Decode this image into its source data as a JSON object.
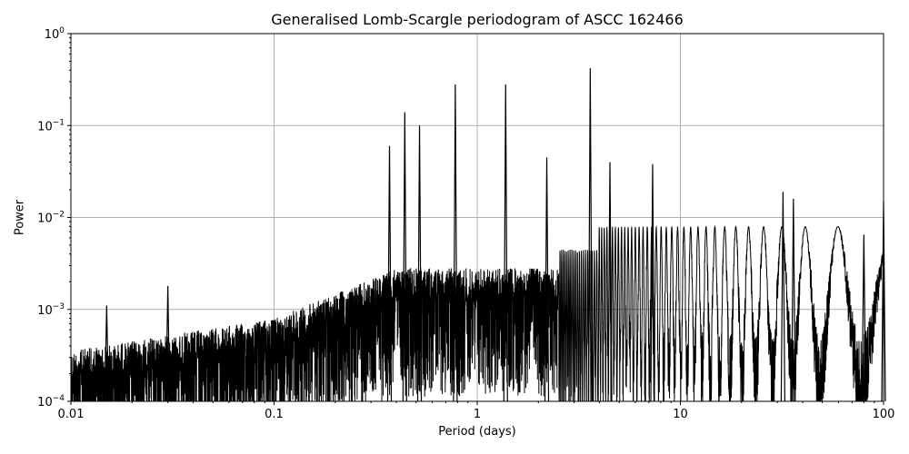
{
  "chart_data": {
    "type": "line",
    "title": "Generalised Lomb-Scargle periodogram of ASCC 162466",
    "xlabel": "Period (days)",
    "ylabel": "Power",
    "xscale": "log",
    "yscale": "log",
    "xlim": [
      0.01,
      100
    ],
    "ylim": [
      0.0001,
      1
    ],
    "grid": true,
    "x_ticks": [
      {
        "value": 0.01,
        "label": "0.01"
      },
      {
        "value": 0.1,
        "label": "0.1"
      },
      {
        "value": 1,
        "label": "1"
      },
      {
        "value": 10,
        "label": "10"
      },
      {
        "value": 100,
        "label": "100"
      }
    ],
    "y_ticks": [
      {
        "value": 1,
        "base": "10",
        "exp": "0"
      },
      {
        "value": 0.1,
        "base": "10",
        "exp": "−1"
      },
      {
        "value": 0.01,
        "base": "10",
        "exp": "−2"
      },
      {
        "value": 0.001,
        "base": "10",
        "exp": "−3"
      },
      {
        "value": 0.0001,
        "base": "10",
        "exp": "−4"
      }
    ],
    "line_color": "#000000",
    "notable_peaks": [
      {
        "period": 3.6,
        "power": 0.42
      },
      {
        "period": 0.78,
        "power": 0.28
      },
      {
        "period": 1.38,
        "power": 0.28
      },
      {
        "period": 0.44,
        "power": 0.14
      },
      {
        "period": 0.52,
        "power": 0.1
      },
      {
        "period": 0.37,
        "power": 0.06
      },
      {
        "period": 2.2,
        "power": 0.045
      },
      {
        "period": 7.3,
        "power": 0.038
      },
      {
        "period": 4.5,
        "power": 0.04
      },
      {
        "period": 32,
        "power": 0.019
      },
      {
        "period": 36,
        "power": 0.016
      },
      {
        "period": 80,
        "power": 0.0065
      },
      {
        "period": 100,
        "power": 0.015
      },
      {
        "period": 0.015,
        "power": 0.0011
      },
      {
        "period": 0.03,
        "power": 0.0018
      }
    ]
  }
}
